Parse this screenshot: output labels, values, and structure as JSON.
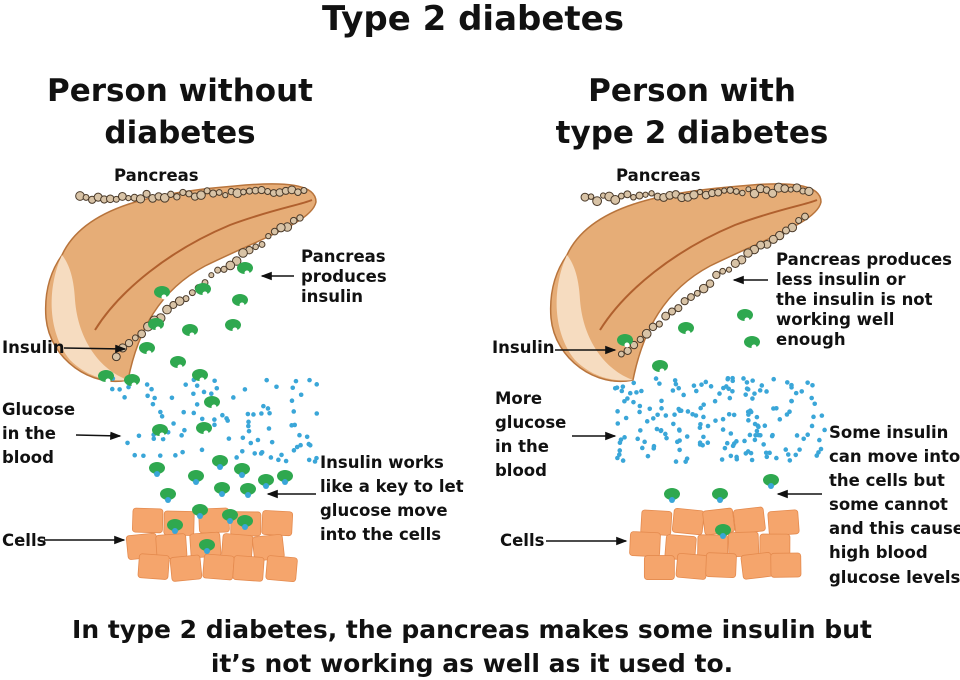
{
  "title": "Type 2 diabetes",
  "left": {
    "heading": [
      "Person without",
      "diabetes"
    ],
    "pancreas_label": "Pancreas",
    "insulin_label": "Insulin",
    "glucose_label": [
      "Glucose",
      "in the",
      "blood"
    ],
    "cells_label": "Cells",
    "produces_label": [
      "Pancreas",
      "produces",
      "insulin"
    ],
    "key_label": [
      "Insulin works",
      "like a key to let",
      "glucose move",
      "into the cells"
    ]
  },
  "right": {
    "heading": [
      "Person with",
      "type 2 diabetes"
    ],
    "pancreas_label": "Pancreas",
    "insulin_label": "Insulin",
    "glucose_label": [
      "More",
      "glucose",
      "in the",
      "blood"
    ],
    "cells_label": "Cells",
    "produces_label": [
      "Pancreas produces",
      "less insulin or",
      "the insulin is not",
      "working well",
      "enough"
    ],
    "some_label": [
      "Some insulin",
      "can move into",
      "the cells but",
      "some cannot",
      "and this causes",
      "high blood",
      "glucose levels"
    ]
  },
  "footer": [
    "In type 2 diabetes, the pancreas makes some insulin but",
    "it’s not working as well as it used to."
  ],
  "colors": {
    "insulin": "#2fa84f",
    "glucose": "#3aa6d8",
    "cell": "#f5a56c",
    "cell_edge": "#e48a4e",
    "pancreas": "#e6ad77",
    "pancreas_edge": "#b8743c"
  }
}
